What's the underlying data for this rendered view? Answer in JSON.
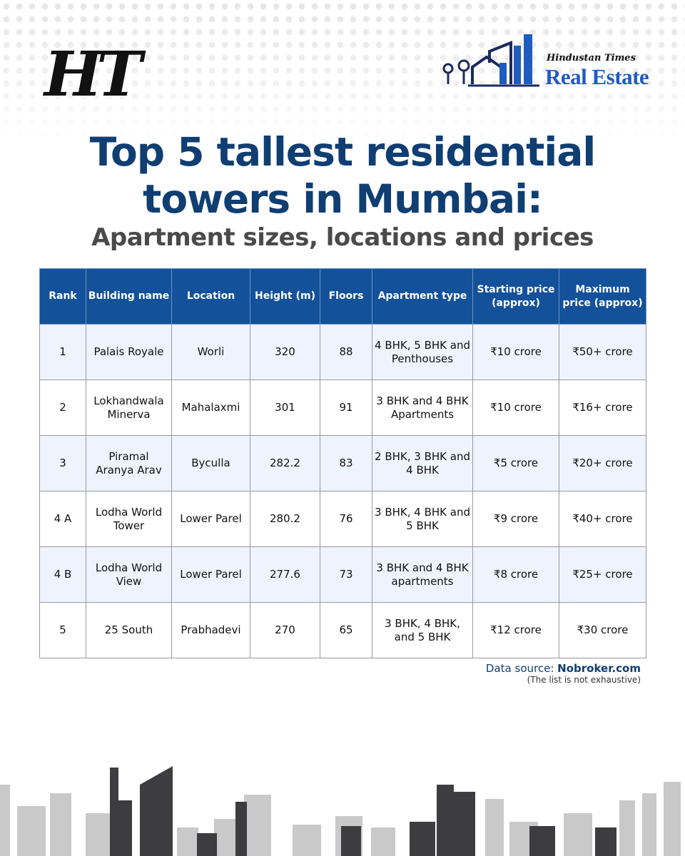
{
  "header": {
    "ht_logo": "HT",
    "brand_small": "Hindustan Times",
    "brand_big": "Real Estate"
  },
  "title_line1": "Top 5 tallest residential",
  "title_line2": "towers in Mumbai:",
  "subtitle": "Apartment sizes, locations and prices",
  "table": {
    "columns": [
      {
        "line1": "Rank",
        "line2": ""
      },
      {
        "line1": "Building name",
        "line2": ""
      },
      {
        "line1": "Location",
        "line2": ""
      },
      {
        "line1": "Height (m)",
        "line2": ""
      },
      {
        "line1": "Floors",
        "line2": ""
      },
      {
        "line1": "Apartment type",
        "line2": ""
      },
      {
        "line1": "Starting price",
        "line2": "(approx)"
      },
      {
        "line1": "Maximum",
        "line2": "price (approx)"
      }
    ],
    "rows": [
      {
        "rank": "1",
        "name": [
          "Palais Royale",
          ""
        ],
        "location": "Worli",
        "height": "320",
        "floors": "88",
        "type": [
          "4 BHK, 5 BHK and",
          "Penthouses"
        ],
        "start": "₹10 crore",
        "max": "₹50+ crore"
      },
      {
        "rank": "2",
        "name": [
          "Lokhandwala",
          "Minerva"
        ],
        "location": "Mahalaxmi",
        "height": "301",
        "floors": "91",
        "type": [
          "3 BHK and 4 BHK",
          "Apartments"
        ],
        "start": "₹10 crore",
        "max": "₹16+ crore"
      },
      {
        "rank": "3",
        "name": [
          "Piramal",
          "Aranya Arav"
        ],
        "location": "Byculla",
        "height": "282.2",
        "floors": "83",
        "type": [
          "2 BHK, 3 BHK and",
          "4 BHK"
        ],
        "start": "₹5 crore",
        "max": "₹20+ crore"
      },
      {
        "rank": "4 A",
        "name": [
          "Lodha World",
          "Tower"
        ],
        "location": "Lower Parel",
        "height": "280.2",
        "floors": "76",
        "type": [
          "3 BHK, 4 BHK and",
          "5 BHK"
        ],
        "start": "₹9 crore",
        "max": "₹40+ crore"
      },
      {
        "rank": "4 B",
        "name": [
          "Lodha World",
          "View"
        ],
        "location": "Lower Parel",
        "height": "277.6",
        "floors": "73",
        "type": [
          "3 BHK and 4 BHK",
          "apartments"
        ],
        "start": "₹8 crore",
        "max": "₹25+ crore"
      },
      {
        "rank": "5",
        "name": [
          "25 South",
          ""
        ],
        "location": "Prabhadevi",
        "height": "270",
        "floors": "65",
        "type": [
          "3 BHK, 4 BHK,",
          "and 5 BHK"
        ],
        "start": "₹12 crore",
        "max": "₹30 crore"
      }
    ]
  },
  "footer": {
    "source_label": "Data source:",
    "source_name": "Nobroker.com",
    "note": "(The list is not exhaustive)"
  },
  "colors": {
    "title": "#0f3e72",
    "header_bg": "#13519a",
    "row_alt": "#eef4fd",
    "brand_blue": "#1e5cbf",
    "skyline_dark": "#3d3d40",
    "skyline_light": "#c9c9c9"
  }
}
